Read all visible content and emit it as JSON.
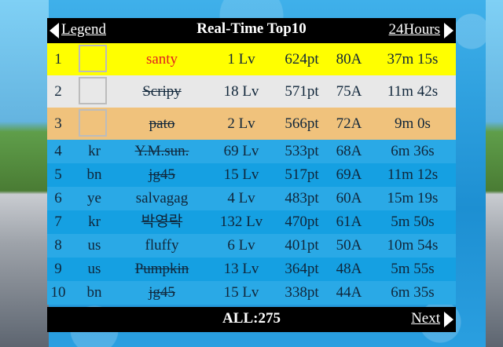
{
  "header": {
    "title": "Real-Time Top10",
    "left_link": "Legend",
    "right_link": "24Hours"
  },
  "footer": {
    "total": "ALL:275",
    "next_link": "Next"
  },
  "ranking": [
    {
      "rank": "1",
      "country": "",
      "name": "santy",
      "level": "1 Lv",
      "points": "624pt",
      "achievements": "80A",
      "time": "37m 15s",
      "struck": false,
      "highlight": "gold"
    },
    {
      "rank": "2",
      "country": "",
      "name": "Scripy",
      "level": "18 Lv",
      "points": "571pt",
      "achievements": "75A",
      "time": "11m 42s",
      "struck": true,
      "highlight": "silver"
    },
    {
      "rank": "3",
      "country": "",
      "name": "pato",
      "level": "2 Lv",
      "points": "566pt",
      "achievements": "72A",
      "time": "9m 0s",
      "struck": true,
      "highlight": "bronze"
    },
    {
      "rank": "4",
      "country": "kr",
      "name": "Y.M.sun.",
      "level": "69 Lv",
      "points": "533pt",
      "achievements": "68A",
      "time": "6m 36s",
      "struck": true
    },
    {
      "rank": "5",
      "country": "bn",
      "name": "jg45",
      "level": "15 Lv",
      "points": "517pt",
      "achievements": "69A",
      "time": "11m 12s",
      "struck": true
    },
    {
      "rank": "6",
      "country": "ye",
      "name": "salvagag",
      "level": "4 Lv",
      "points": "483pt",
      "achievements": "60A",
      "time": "15m 19s",
      "struck": false
    },
    {
      "rank": "7",
      "country": "kr",
      "name": "박영락",
      "level": "132 Lv",
      "points": "470pt",
      "achievements": "61A",
      "time": "5m 50s",
      "struck": true
    },
    {
      "rank": "8",
      "country": "us",
      "name": "fluffy",
      "level": "6 Lv",
      "points": "401pt",
      "achievements": "50A",
      "time": "10m 54s",
      "struck": false
    },
    {
      "rank": "9",
      "country": "us",
      "name": "Pumpkin",
      "level": "13 Lv",
      "points": "364pt",
      "achievements": "48A",
      "time": "5m 55s",
      "struck": true
    },
    {
      "rank": "10",
      "country": "bn",
      "name": "jg45",
      "level": "15 Lv",
      "points": "338pt",
      "achievements": "44A",
      "time": "6m 35s",
      "struck": true
    }
  ],
  "colors": {
    "gold": "#ffff00",
    "silver": "#e8e8e8",
    "bronze": "#f0c27c",
    "row": "#15a0e2",
    "bar": "#000000"
  }
}
